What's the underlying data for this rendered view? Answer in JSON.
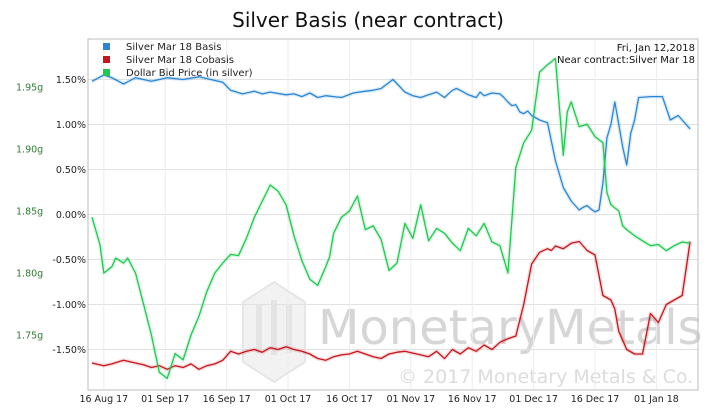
{
  "chart_data": {
    "type": "line",
    "title": "Silver Basis (near contract)",
    "date_note": "Fri, Jan 12,2018",
    "contract_note": "Near contract:Silver Mar 18",
    "watermark": "MonetaryMetals",
    "copyright": "© 2017 Monetary Metals & Co.",
    "x_ticks": [
      "16 Aug 17",
      "01 Sep 17",
      "16 Sep 17",
      "01 Oct 17",
      "16 Oct 17",
      "01 Nov 17",
      "16 Nov 17",
      "01 Dec 17",
      "16 Dec 17",
      "01 Jan 18"
    ],
    "left_axis": {
      "ticks": [
        "1.75g",
        "1.80g",
        "1.85g",
        "1.90g",
        "1.95g"
      ],
      "values": [
        1.75,
        1.8,
        1.85,
        1.9,
        1.95
      ],
      "color": "#2e7d32"
    },
    "right_axis": {
      "ticks": [
        "-1.50%",
        "-1.00%",
        "-0.50%",
        "0.00%",
        "0.50%",
        "1.00%",
        "1.50%"
      ],
      "values": [
        -1.5,
        -1.0,
        -0.5,
        0.0,
        0.5,
        1.0,
        1.5
      ],
      "ylim": [
        -1.95,
        1.95
      ]
    },
    "x_range_days": [
      -4,
      150
    ],
    "series": [
      {
        "name": "Silver Mar 18 Basis",
        "color": "#2a86d4",
        "axis": "right",
        "x": [
          -3,
          0,
          2,
          5,
          8,
          10,
          12,
          16,
          20,
          24,
          30,
          32,
          35,
          38,
          40,
          42,
          46,
          48,
          50,
          52,
          54,
          56,
          58,
          60,
          63,
          66,
          68,
          70,
          73,
          76,
          78,
          80,
          82,
          84,
          86,
          88,
          89,
          90,
          92,
          94,
          95,
          96,
          98,
          100,
          101,
          102,
          103,
          104,
          105,
          106,
          107,
          108,
          110,
          112,
          114,
          116,
          118,
          120,
          121,
          122,
          123,
          124,
          125,
          126,
          127,
          128,
          129,
          130,
          131,
          132,
          133,
          134,
          135,
          138,
          141,
          143,
          145,
          148
        ],
        "values": [
          1.48,
          1.55,
          1.52,
          1.45,
          1.52,
          1.5,
          1.48,
          1.52,
          1.5,
          1.53,
          1.47,
          1.38,
          1.34,
          1.37,
          1.34,
          1.36,
          1.33,
          1.34,
          1.31,
          1.35,
          1.3,
          1.32,
          1.31,
          1.3,
          1.35,
          1.37,
          1.38,
          1.4,
          1.5,
          1.36,
          1.32,
          1.3,
          1.33,
          1.36,
          1.3,
          1.38,
          1.4,
          1.38,
          1.33,
          1.3,
          1.36,
          1.32,
          1.35,
          1.34,
          1.3,
          1.25,
          1.21,
          1.22,
          1.14,
          1.12,
          1.15,
          1.1,
          1.05,
          1.02,
          0.6,
          0.3,
          0.15,
          0.05,
          0.08,
          0.1,
          0.06,
          0.03,
          0.05,
          0.35,
          0.85,
          1.0,
          1.25,
          1.0,
          0.75,
          0.55,
          0.9,
          1.05,
          1.3,
          1.31,
          1.31,
          1.05,
          1.1,
          0.95
        ]
      },
      {
        "name": "Silver Mar 18 Cobasis",
        "color": "#c8141a",
        "axis": "right",
        "x": [
          -3,
          0,
          2,
          5,
          8,
          10,
          12,
          14,
          16,
          18,
          20,
          22,
          24,
          26,
          28,
          30,
          32,
          34,
          36,
          38,
          40,
          42,
          44,
          46,
          48,
          50,
          52,
          54,
          56,
          58,
          60,
          62,
          64,
          66,
          68,
          70,
          72,
          74,
          76,
          78,
          80,
          82,
          84,
          86,
          88,
          90,
          92,
          94,
          96,
          98,
          100,
          102,
          104,
          106,
          108,
          110,
          112,
          113,
          114,
          116,
          118,
          120,
          122,
          124,
          126,
          128,
          129,
          130,
          132,
          134,
          136,
          138,
          140,
          142,
          144,
          146,
          148
        ],
        "values": [
          -1.65,
          -1.68,
          -1.66,
          -1.62,
          -1.65,
          -1.67,
          -1.7,
          -1.68,
          -1.72,
          -1.68,
          -1.7,
          -1.66,
          -1.72,
          -1.68,
          -1.66,
          -1.62,
          -1.52,
          -1.55,
          -1.52,
          -1.5,
          -1.53,
          -1.48,
          -1.5,
          -1.47,
          -1.5,
          -1.52,
          -1.55,
          -1.6,
          -1.62,
          -1.58,
          -1.56,
          -1.55,
          -1.52,
          -1.55,
          -1.58,
          -1.6,
          -1.55,
          -1.53,
          -1.52,
          -1.54,
          -1.56,
          -1.58,
          -1.52,
          -1.6,
          -1.5,
          -1.55,
          -1.48,
          -1.52,
          -1.45,
          -1.5,
          -1.42,
          -1.38,
          -1.35,
          -1.0,
          -0.55,
          -0.42,
          -0.38,
          -0.4,
          -0.35,
          -0.38,
          -0.32,
          -0.3,
          -0.4,
          -0.45,
          -0.9,
          -0.95,
          -1.05,
          -1.3,
          -1.5,
          -1.55,
          -1.55,
          -1.1,
          -1.2,
          -1.0,
          -0.95,
          -0.9,
          -0.3
        ]
      },
      {
        "name": "Dollar Bid Price (in silver)",
        "color": "#1ec94f",
        "axis": "left",
        "x": [
          -3,
          -1,
          0,
          2,
          3,
          5,
          6,
          8,
          10,
          12,
          13,
          14,
          16,
          18,
          20,
          22,
          24,
          26,
          28,
          30,
          32,
          34,
          36,
          38,
          40,
          42,
          44,
          46,
          48,
          50,
          52,
          54,
          56,
          57,
          58,
          60,
          62,
          64,
          66,
          68,
          70,
          72,
          74,
          76,
          78,
          80,
          82,
          84,
          86,
          88,
          90,
          92,
          94,
          96,
          98,
          100,
          102,
          104,
          106,
          108,
          110,
          112,
          114,
          116,
          117,
          118,
          120,
          122,
          124,
          126,
          127,
          128,
          130,
          131,
          132,
          134,
          136,
          138,
          140,
          142,
          144,
          146,
          148
        ],
        "values": [
          1.845,
          1.823,
          1.8,
          1.805,
          1.812,
          1.808,
          1.812,
          1.8,
          1.775,
          1.75,
          1.735,
          1.72,
          1.715,
          1.735,
          1.73,
          1.75,
          1.765,
          1.785,
          1.8,
          1.808,
          1.815,
          1.814,
          1.828,
          1.845,
          1.858,
          1.871,
          1.866,
          1.855,
          1.83,
          1.81,
          1.795,
          1.79,
          1.805,
          1.813,
          1.832,
          1.845,
          1.85,
          1.862,
          1.835,
          1.838,
          1.827,
          1.802,
          1.808,
          1.84,
          1.828,
          1.855,
          1.826,
          1.836,
          1.832,
          1.824,
          1.818,
          1.836,
          1.83,
          1.84,
          1.825,
          1.822,
          1.8,
          1.885,
          1.905,
          1.915,
          1.962,
          1.968,
          1.973,
          1.895,
          1.93,
          1.938,
          1.918,
          1.92,
          1.91,
          1.905,
          1.865,
          1.855,
          1.85,
          1.838,
          1.835,
          1.83,
          1.826,
          1.822,
          1.823,
          1.818,
          1.822,
          1.825,
          1.824
        ]
      }
    ]
  }
}
